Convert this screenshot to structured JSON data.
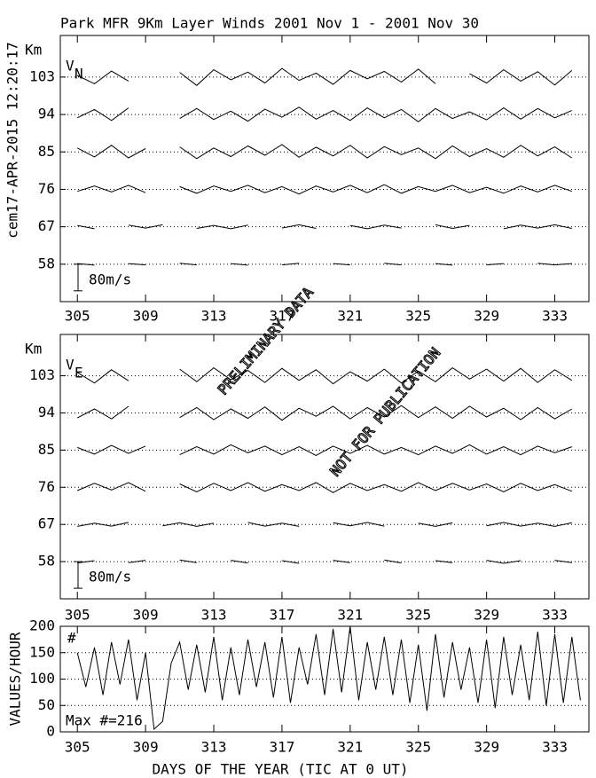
{
  "title": "Park MFR 9Km Layer Winds 2001 Nov  1 - 2001 Nov 30",
  "run_stamp": "cem17-APR-2015 12:20:17",
  "watermarks": [
    "PRELIMINARY DATA",
    "NOT FOR PUBLICATION"
  ],
  "chart_data": [
    {
      "type": "traces",
      "component_label": "V",
      "component_subscript": "N",
      "y_label": "Km",
      "xlim": [
        304,
        335
      ],
      "xticks": [
        305,
        309,
        313,
        317,
        321,
        325,
        329,
        333
      ],
      "ylim": [
        49,
        113
      ],
      "yticks": [
        103,
        94,
        85,
        76,
        67,
        58
      ],
      "grid": true,
      "color": "#000000",
      "scale_bar": {
        "value": 80,
        "label": "80m/s"
      },
      "x": [
        305,
        306,
        307,
        308,
        309,
        310,
        311,
        312,
        313,
        314,
        315,
        316,
        317,
        318,
        319,
        320,
        321,
        322,
        323,
        324,
        325,
        326,
        327,
        328,
        329,
        330,
        331,
        332,
        333,
        334
      ],
      "series": [
        {
          "values": [
            5,
            -20,
            18,
            -12,
            null,
            null,
            14,
            -25,
            22,
            -8,
            15,
            -18,
            26,
            -10,
            12,
            -22,
            20,
            -5,
            17,
            -15,
            24,
            -20,
            null,
            10,
            -18,
            22,
            -12,
            16,
            -24,
            20
          ]
        },
        {
          "values": [
            -10,
            15,
            -18,
            20,
            null,
            null,
            -12,
            18,
            -15,
            10,
            -20,
            16,
            -8,
            22,
            -14,
            12,
            -18,
            20,
            -10,
            15,
            -22,
            18,
            -12,
            8,
            -16,
            20,
            -14,
            18,
            -10,
            12
          ]
        },
        {
          "values": [
            12,
            -15,
            20,
            -18,
            10,
            null,
            15,
            -20,
            12,
            -14,
            18,
            -10,
            22,
            -16,
            14,
            -12,
            20,
            -18,
            16,
            -8,
            12,
            -20,
            18,
            -14,
            10,
            -16,
            20,
            -12,
            15,
            -18
          ]
        },
        {
          "values": [
            -6,
            10,
            -8,
            12,
            -10,
            null,
            8,
            -12,
            10,
            -6,
            12,
            -10,
            8,
            -14,
            10,
            -8,
            12,
            -10,
            14,
            -12,
            8,
            -6,
            12,
            -10,
            6,
            -12,
            10,
            -8,
            12,
            -6
          ]
        },
        {
          "values": [
            4,
            -6,
            null,
            5,
            -4,
            6,
            null,
            -5,
            4,
            -6,
            5,
            null,
            -4,
            6,
            -5,
            null,
            4,
            -6,
            5,
            -4,
            null,
            6,
            -5,
            4,
            null,
            -6,
            5,
            -4,
            6,
            -5
          ]
        },
        {
          "values": [
            2,
            -3,
            null,
            2,
            -2,
            null,
            3,
            -2,
            null,
            2,
            -3,
            null,
            -2,
            3,
            null,
            2,
            -2,
            null,
            3,
            -2,
            null,
            2,
            -3,
            null,
            -2,
            2,
            null,
            3,
            -2,
            2
          ]
        }
      ]
    },
    {
      "type": "traces",
      "component_label": "V",
      "component_subscript": "E",
      "y_label": "Km",
      "xlim": [
        304,
        335
      ],
      "xticks": [
        305,
        309,
        313,
        317,
        321,
        325,
        329,
        333
      ],
      "ylim": [
        49,
        113
      ],
      "yticks": [
        103,
        94,
        85,
        76,
        67,
        58
      ],
      "grid": true,
      "color": "#000000",
      "scale_bar": {
        "value": 80,
        "label": "80m/s"
      },
      "x": [
        305,
        306,
        307,
        308,
        309,
        310,
        311,
        312,
        313,
        314,
        315,
        316,
        317,
        318,
        319,
        320,
        321,
        322,
        323,
        324,
        325,
        326,
        327,
        328,
        329,
        330,
        331,
        332,
        333,
        334
      ],
      "series": [
        {
          "values": [
            10,
            -22,
            18,
            -15,
            null,
            null,
            20,
            -18,
            24,
            -12,
            16,
            -20,
            22,
            -14,
            18,
            -24,
            12,
            -16,
            20,
            -22,
            14,
            -18,
            24,
            -10,
            20,
            -16,
            22,
            -20,
            18,
            -14
          ]
        },
        {
          "values": [
            -15,
            12,
            -18,
            20,
            null,
            null,
            -14,
            16,
            -20,
            12,
            -16,
            18,
            -22,
            14,
            -10,
            20,
            -18,
            16,
            -12,
            22,
            -14,
            18,
            -16,
            20,
            -12,
            14,
            -20,
            16,
            -18,
            12
          ]
        },
        {
          "values": [
            8,
            -12,
            14,
            -10,
            12,
            null,
            -14,
            10,
            -12,
            16,
            -8,
            12,
            -14,
            10,
            -16,
            12,
            -10,
            14,
            -12,
            8,
            -14,
            12,
            -10,
            16,
            -12,
            10,
            -14,
            12,
            -8,
            10
          ]
        },
        {
          "values": [
            -10,
            12,
            -8,
            14,
            -12,
            null,
            10,
            -14,
            12,
            -10,
            14,
            -12,
            8,
            -10,
            14,
            -16,
            12,
            -10,
            8,
            -12,
            14,
            -10,
            12,
            -8,
            10,
            -14,
            12,
            -10,
            8,
            -12
          ]
        },
        {
          "values": [
            -6,
            4,
            -5,
            6,
            null,
            -4,
            5,
            -6,
            4,
            null,
            6,
            -5,
            4,
            -6,
            null,
            5,
            -4,
            6,
            -5,
            null,
            4,
            -6,
            5,
            null,
            -4,
            6,
            -5,
            4,
            -6,
            5
          ]
        },
        {
          "values": [
            -4,
            3,
            null,
            -3,
            4,
            null,
            5,
            -3,
            null,
            4,
            -4,
            null,
            3,
            -5,
            null,
            4,
            -3,
            null,
            5,
            -4,
            null,
            3,
            -3,
            null,
            4,
            -5,
            3,
            null,
            4,
            -3
          ]
        }
      ]
    },
    {
      "type": "line",
      "y_label": "VALUES/HOUR",
      "x_label": "DAYS OF THE YEAR (TIC AT 0 UT)",
      "corner_label": "#",
      "max_label": "Max #=216",
      "xlim": [
        304,
        335
      ],
      "xticks": [
        305,
        309,
        313,
        317,
        321,
        325,
        329,
        333
      ],
      "ylim": [
        0,
        200
      ],
      "yticks": [
        0,
        50,
        100,
        150,
        200
      ],
      "grid": true,
      "color": "#000000",
      "x": [
        305,
        305.5,
        306,
        306.5,
        307,
        307.5,
        308,
        308.5,
        309,
        309.5,
        310,
        310.5,
        311,
        311.5,
        312,
        312.5,
        313,
        313.5,
        314,
        314.5,
        315,
        315.5,
        316,
        316.5,
        317,
        317.5,
        318,
        318.5,
        319,
        319.5,
        320,
        320.5,
        321,
        321.5,
        322,
        322.5,
        323,
        323.5,
        324,
        324.5,
        325,
        325.5,
        326,
        326.5,
        327,
        327.5,
        328,
        328.5,
        329,
        329.5,
        330,
        330.5,
        331,
        331.5,
        332,
        332.5,
        333,
        333.5,
        334,
        334.5
      ],
      "series": [
        {
          "values": [
            150,
            85,
            160,
            70,
            170,
            90,
            175,
            60,
            150,
            5,
            20,
            130,
            170,
            80,
            165,
            75,
            180,
            60,
            160,
            70,
            175,
            85,
            170,
            65,
            180,
            55,
            160,
            90,
            185,
            70,
            195,
            75,
            200,
            60,
            170,
            80,
            180,
            70,
            175,
            55,
            165,
            40,
            185,
            65,
            170,
            80,
            160,
            55,
            175,
            45,
            180,
            70,
            165,
            60,
            190,
            50,
            185,
            55,
            180,
            60
          ]
        }
      ]
    }
  ]
}
